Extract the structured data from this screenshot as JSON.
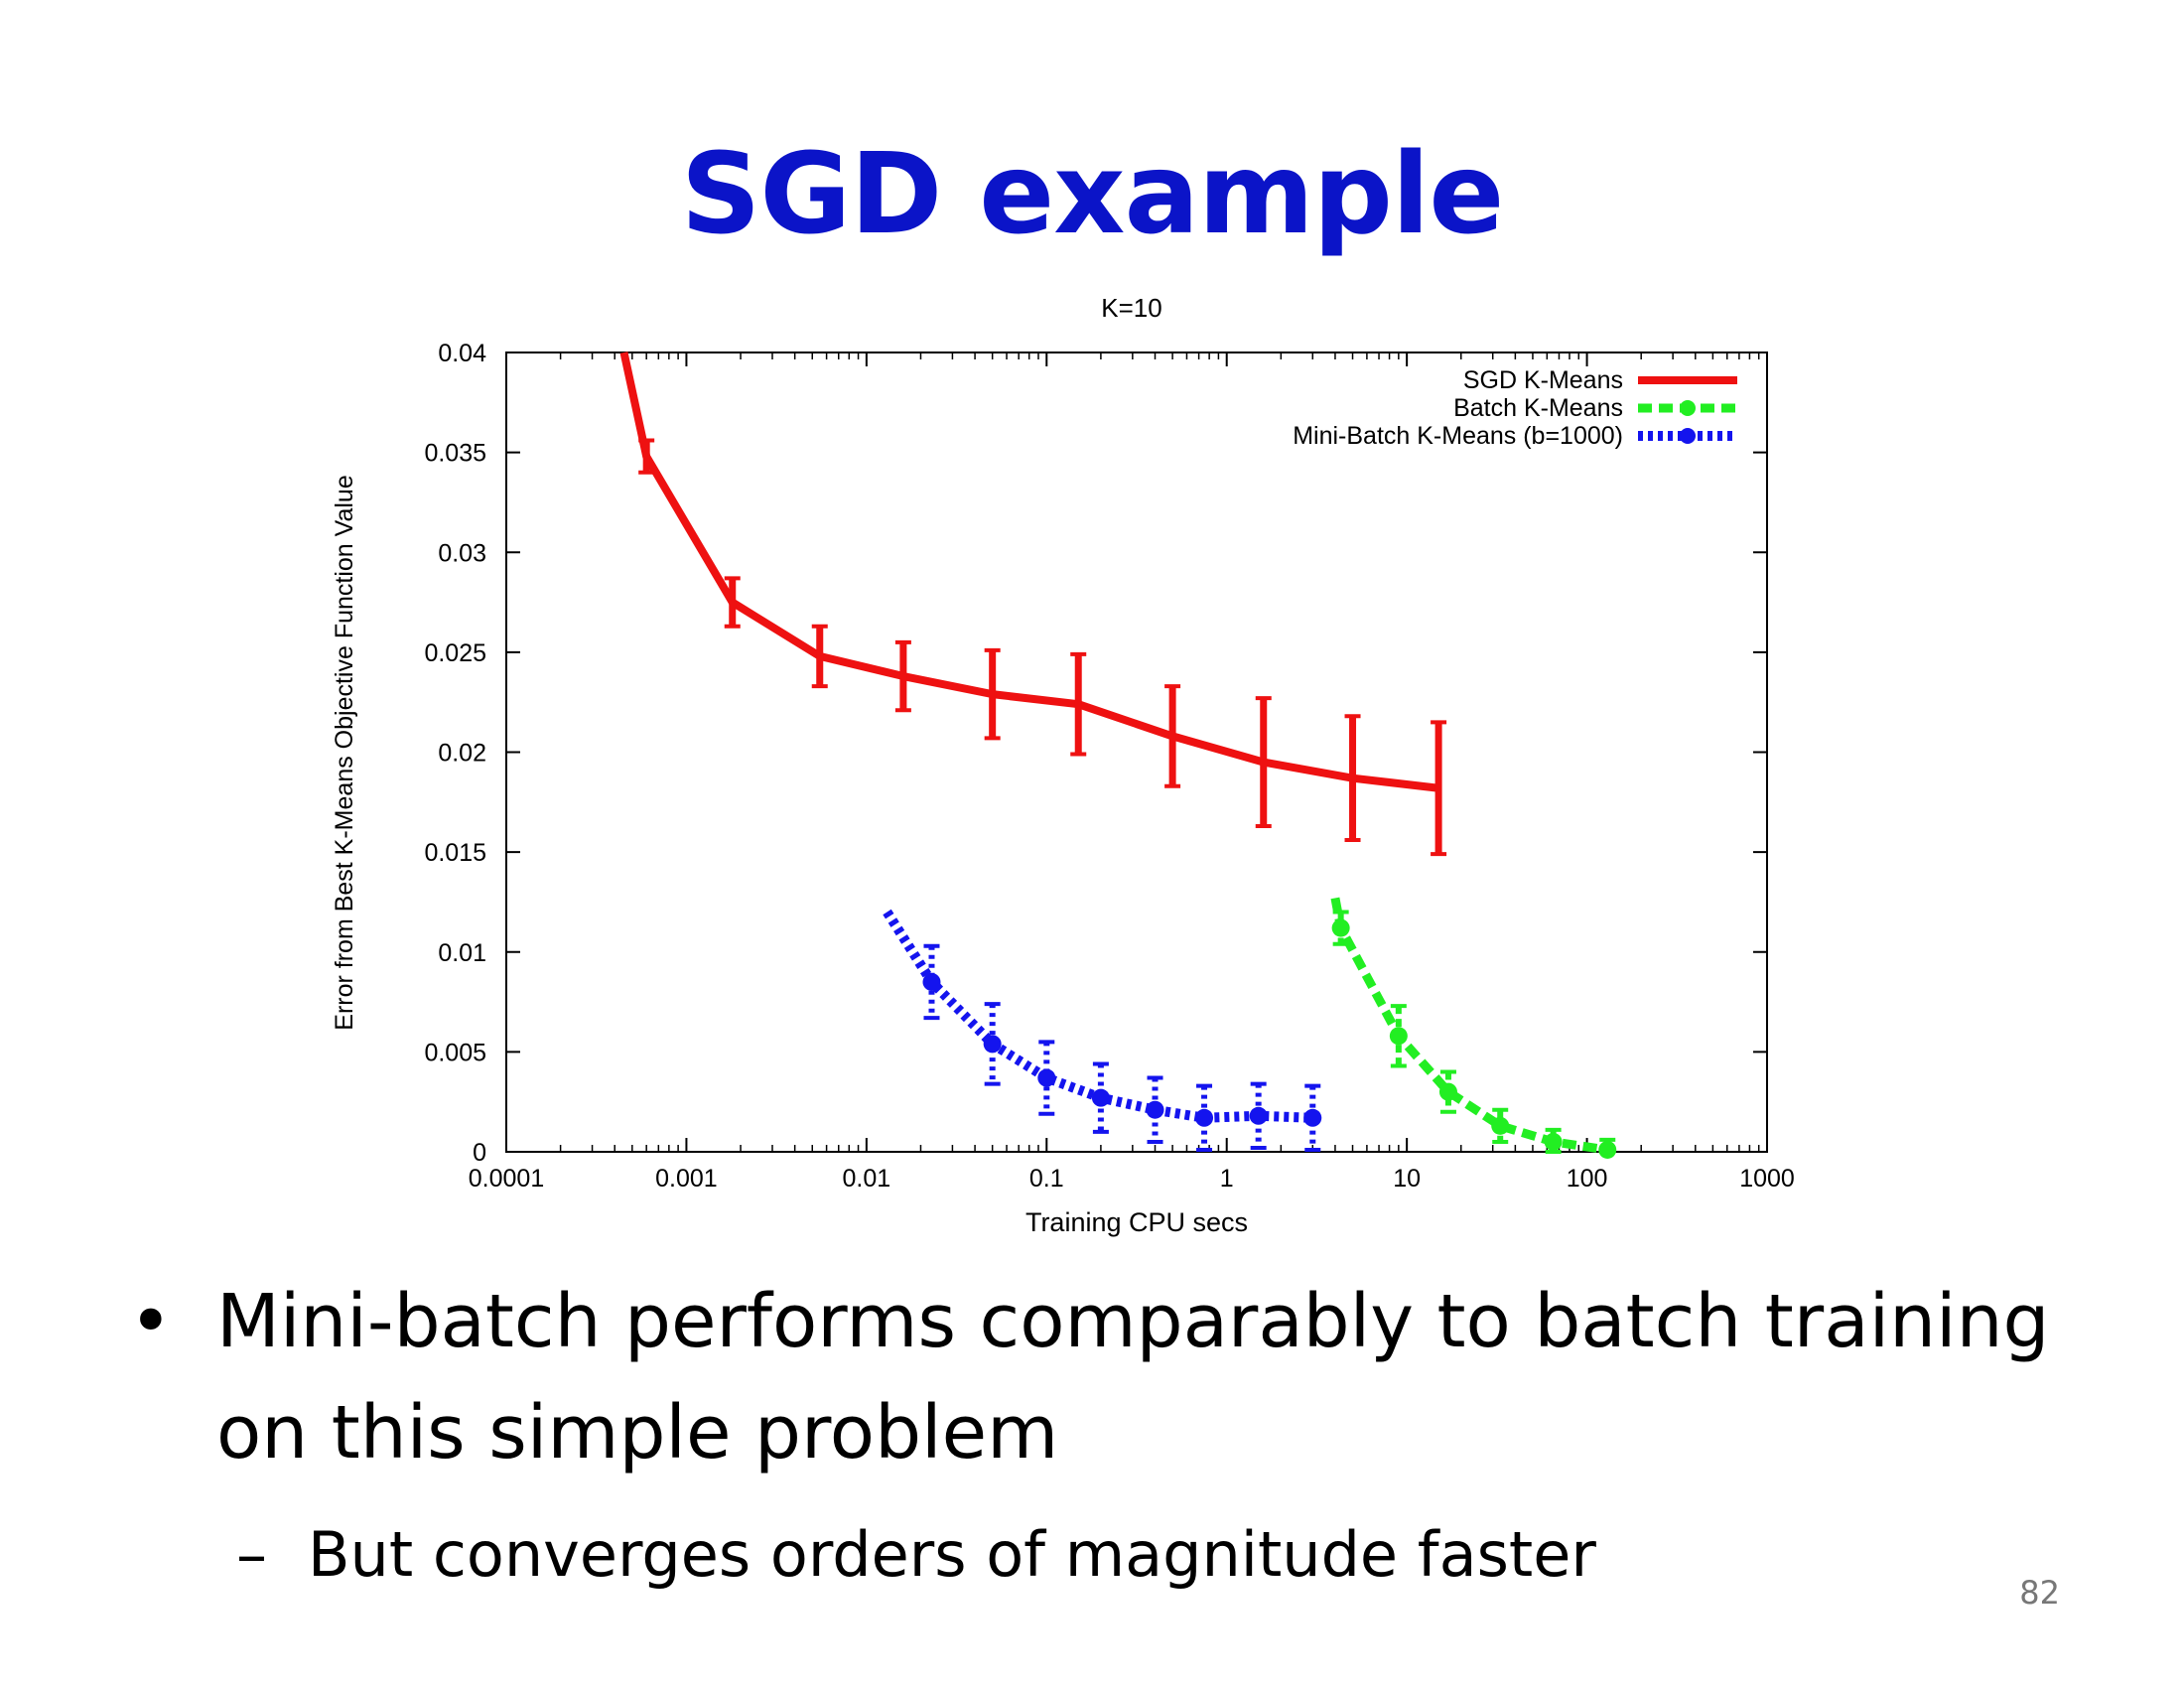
{
  "slide": {
    "title": "SGD example",
    "bullet": "Mini-batch performs comparably to batch training on this simple problem",
    "sub_bullet": "But converges orders of magnitude faster",
    "page_number": "82"
  },
  "chart_data": {
    "type": "line",
    "title": "K=10",
    "xlabel": "Training CPU secs",
    "ylabel": "Error from Best K-Means Objective Function Value",
    "x_scale": "log",
    "xlim": [
      0.0001,
      1000
    ],
    "ylim": [
      0,
      0.04
    ],
    "x_ticks": [
      "0.0001",
      "0.001",
      "0.01",
      "0.1",
      "1",
      "10",
      "100",
      "1000"
    ],
    "y_ticks": [
      "0",
      "0.005",
      "0.01",
      "0.015",
      "0.02",
      "0.025",
      "0.03",
      "0.035",
      "0.04"
    ],
    "grid": false,
    "legend_position": "top-right",
    "series": [
      {
        "name": "SGD K-Means",
        "color": "#ee1111",
        "style": "solid",
        "x": [
          0.00045,
          0.0006,
          0.0018,
          0.0055,
          0.016,
          0.05,
          0.15,
          0.5,
          1.6,
          5,
          15
        ],
        "y": [
          0.0405,
          0.0348,
          0.0275,
          0.0248,
          0.0238,
          0.0229,
          0.0224,
          0.0208,
          0.0195,
          0.0187,
          0.0182
        ],
        "err": [
          0,
          0.0008,
          0.0012,
          0.0015,
          0.0017,
          0.0022,
          0.0025,
          0.0025,
          0.0032,
          0.0031,
          0.0033
        ]
      },
      {
        "name": "Batch K-Means",
        "color": "#22ee22",
        "style": "dashed",
        "x": [
          4,
          4.3,
          9,
          17,
          33,
          65,
          130
        ],
        "y": [
          0.0127,
          0.0112,
          0.0058,
          0.003,
          0.0013,
          0.0005,
          0.0001
        ],
        "err": [
          0,
          0.0008,
          0.0015,
          0.001,
          0.0008,
          0.0006,
          0.0005
        ]
      },
      {
        "name": "Mini-Batch K-Means (b=1000)",
        "color": "#1414ee",
        "style": "dotted",
        "x": [
          0.013,
          0.023,
          0.05,
          0.1,
          0.2,
          0.4,
          0.75,
          1.5,
          3
        ],
        "y": [
          0.012,
          0.0085,
          0.0054,
          0.0037,
          0.0027,
          0.0021,
          0.0017,
          0.0018,
          0.0017
        ],
        "err": [
          0,
          0.0018,
          0.002,
          0.0018,
          0.0017,
          0.0016,
          0.0016,
          0.0016,
          0.0016
        ]
      }
    ]
  }
}
